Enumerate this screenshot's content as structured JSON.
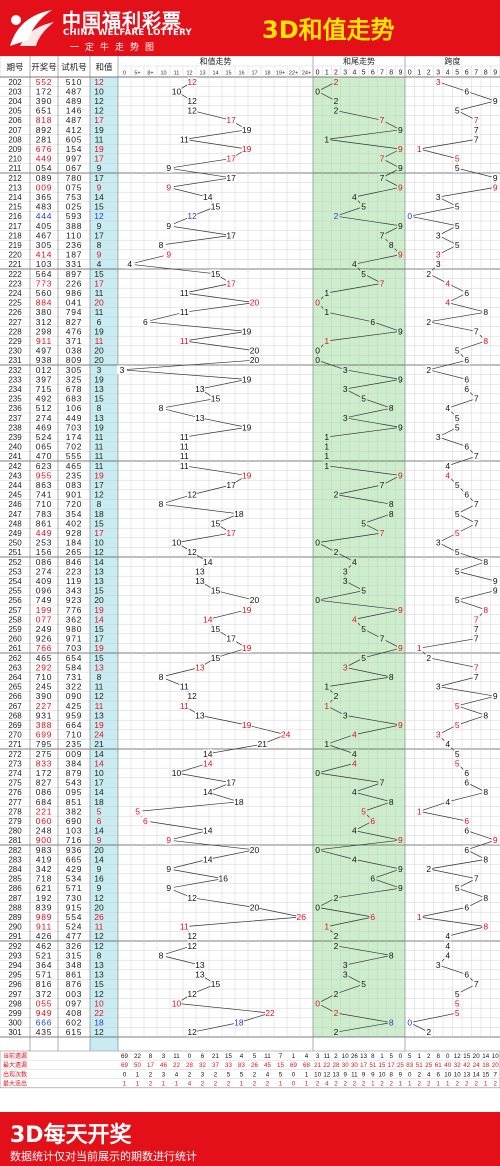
{
  "header": {
    "logo_cn": "中国福利彩票",
    "logo_en": "CHINA WELFARE LOTTERY",
    "slogan": "一定牛走势图",
    "title": "3D和值走势"
  },
  "footer": {
    "title": "3D每天开奖",
    "note": "数据统计仅对当前展示的期数进行统计"
  },
  "columns": {
    "issue": "期号",
    "prize": "开奖号",
    "trial": "试机号",
    "sum": "和值",
    "sum_trend": "和值走势",
    "tail_trend": "和尾走势",
    "span": "跨度",
    "sum_bins": [
      "0",
      "5+",
      "8+",
      "10",
      "11",
      "12",
      "13",
      "14",
      "15",
      "16",
      "17",
      "18",
      "19+",
      "22+",
      "24+"
    ],
    "digits": [
      "0",
      "1",
      "2",
      "3",
      "4",
      "5",
      "6",
      "7",
      "8",
      "9"
    ]
  },
  "stats_labels": [
    "当前遗漏",
    "最大遗漏",
    "出现次数",
    "最大连出"
  ],
  "stats": {
    "sum": [
      [
        "69",
        "22",
        "8",
        "3",
        "11",
        "0",
        "6",
        "21",
        "15",
        "4",
        "5",
        "11",
        "7",
        "1",
        "4"
      ],
      [
        "69",
        "50",
        "17",
        "46",
        "22",
        "28",
        "32",
        "37",
        "33",
        "83",
        "26",
        "45",
        "15",
        "69",
        "68"
      ],
      [
        "0",
        "1",
        "2",
        "3",
        "4",
        "2",
        "3",
        "2",
        "5",
        "5",
        "2",
        "4",
        "5",
        "0",
        "1"
      ],
      [
        "1",
        "1",
        "2",
        "1",
        "1",
        "4",
        "2",
        "2",
        "2",
        "1",
        "2",
        "2",
        "1",
        "0",
        "1"
      ]
    ],
    "tail": [
      [
        "3",
        "11",
        "2",
        "10",
        "26",
        "13",
        "8",
        "1",
        "5",
        "0"
      ],
      [
        "21",
        "22",
        "28",
        "30",
        "30",
        "17",
        "51",
        "15",
        "17",
        "25"
      ],
      [
        "10",
        "12",
        "13",
        "9",
        "11",
        "9",
        "9",
        "10",
        "8",
        "9"
      ],
      [
        "2",
        "4",
        "2",
        "2",
        "2",
        "2",
        "1",
        "2",
        "2",
        "1"
      ]
    ],
    "span": [
      [
        "5",
        "1",
        "2",
        "8",
        "0",
        "12",
        "15",
        "20",
        "14",
        "10"
      ],
      [
        "83",
        "51",
        "25",
        "61",
        "40",
        "32",
        "42",
        "24",
        "18",
        "20"
      ],
      [
        "0",
        "2",
        "4",
        "6",
        "10",
        "10",
        "13",
        "14",
        "15",
        "7"
      ],
      [
        "1",
        "2",
        "2",
        "1",
        "1",
        "2",
        "2",
        "2",
        "1",
        "2"
      ]
    ]
  },
  "rows": [
    {
      "issue": "202",
      "prize": "552",
      "trial": "510",
      "sum": 12,
      "tail": 2,
      "span": 3
    },
    {
      "issue": "203",
      "prize": "172",
      "trial": "487",
      "sum": 10,
      "tail": 0,
      "span": 6
    },
    {
      "issue": "204",
      "prize": "390",
      "trial": "489",
      "sum": 12,
      "tail": 2,
      "span": 9
    },
    {
      "issue": "205",
      "prize": "651",
      "trial": "146",
      "sum": 12,
      "tail": 2,
      "span": 5
    },
    {
      "issue": "206",
      "prize": "818",
      "trial": "487",
      "sum": 17,
      "tail": 7,
      "span": 7
    },
    {
      "issue": "207",
      "prize": "892",
      "trial": "412",
      "sum": 19,
      "tail": 9,
      "span": 7
    },
    {
      "issue": "208",
      "prize": "281",
      "trial": "605",
      "sum": 11,
      "tail": 1,
      "span": 7
    },
    {
      "issue": "209",
      "prize": "676",
      "trial": "154",
      "sum": 19,
      "tail": 9,
      "span": 1
    },
    {
      "issue": "210",
      "prize": "449",
      "trial": "997",
      "sum": 17,
      "tail": 7,
      "span": 5
    },
    {
      "issue": "211",
      "prize": "054",
      "trial": "067",
      "sum": 9,
      "tail": 9,
      "span": 5
    },
    {
      "issue": "212",
      "prize": "089",
      "trial": "780",
      "sum": 17,
      "tail": 7,
      "span": 9
    },
    {
      "issue": "213",
      "prize": "009",
      "trial": "075",
      "sum": 9,
      "tail": 9,
      "span": 9
    },
    {
      "issue": "214",
      "prize": "365",
      "trial": "753",
      "sum": 14,
      "tail": 4,
      "span": 3
    },
    {
      "issue": "215",
      "prize": "483",
      "trial": "025",
      "sum": 15,
      "tail": 5,
      "span": 5
    },
    {
      "issue": "216",
      "prize": "444",
      "trial": "593",
      "sum": 12,
      "tail": 2,
      "span": 0
    },
    {
      "issue": "217",
      "prize": "405",
      "trial": "388",
      "sum": 9,
      "tail": 9,
      "span": 5
    },
    {
      "issue": "218",
      "prize": "467",
      "trial": "110",
      "sum": 17,
      "tail": 7,
      "span": 3
    },
    {
      "issue": "219",
      "prize": "305",
      "trial": "236",
      "sum": 8,
      "tail": 8,
      "span": 5
    },
    {
      "issue": "220",
      "prize": "414",
      "trial": "187",
      "sum": 9,
      "tail": 9,
      "span": 3
    },
    {
      "issue": "221",
      "prize": "103",
      "trial": "331",
      "sum": 4,
      "tail": 4,
      "span": 3
    },
    {
      "issue": "222",
      "prize": "564",
      "trial": "897",
      "sum": 15,
      "tail": 5,
      "span": 2
    },
    {
      "issue": "223",
      "prize": "773",
      "trial": "226",
      "sum": 17,
      "tail": 7,
      "span": 4
    },
    {
      "issue": "224",
      "prize": "560",
      "trial": "986",
      "sum": 11,
      "tail": 1,
      "span": 6
    },
    {
      "issue": "225",
      "prize": "884",
      "trial": "041",
      "sum": 20,
      "tail": 0,
      "span": 4
    },
    {
      "issue": "226",
      "prize": "380",
      "trial": "794",
      "sum": 11,
      "tail": 1,
      "span": 8
    },
    {
      "issue": "227",
      "prize": "312",
      "trial": "827",
      "sum": 6,
      "tail": 6,
      "span": 2
    },
    {
      "issue": "228",
      "prize": "298",
      "trial": "476",
      "sum": 19,
      "tail": 9,
      "span": 7
    },
    {
      "issue": "229",
      "prize": "911",
      "trial": "371",
      "sum": 11,
      "tail": 1,
      "span": 8
    },
    {
      "issue": "230",
      "prize": "497",
      "trial": "038",
      "sum": 20,
      "tail": 0,
      "span": 5
    },
    {
      "issue": "231",
      "prize": "938",
      "trial": "809",
      "sum": 20,
      "tail": 0,
      "span": 6
    },
    {
      "issue": "232",
      "prize": "012",
      "trial": "305",
      "sum": 3,
      "tail": 3,
      "span": 2
    },
    {
      "issue": "233",
      "prize": "397",
      "trial": "325",
      "sum": 19,
      "tail": 9,
      "span": 6
    },
    {
      "issue": "234",
      "prize": "715",
      "trial": "678",
      "sum": 13,
      "tail": 3,
      "span": 6
    },
    {
      "issue": "235",
      "prize": "492",
      "trial": "683",
      "sum": 15,
      "tail": 5,
      "span": 7
    },
    {
      "issue": "236",
      "prize": "512",
      "trial": "106",
      "sum": 8,
      "tail": 8,
      "span": 4
    },
    {
      "issue": "237",
      "prize": "274",
      "trial": "449",
      "sum": 13,
      "tail": 3,
      "span": 5
    },
    {
      "issue": "238",
      "prize": "469",
      "trial": "703",
      "sum": 19,
      "tail": 9,
      "span": 5
    },
    {
      "issue": "239",
      "prize": "524",
      "trial": "174",
      "sum": 11,
      "tail": 1,
      "span": 3
    },
    {
      "issue": "240",
      "prize": "065",
      "trial": "702",
      "sum": 11,
      "tail": 1,
      "span": 6
    },
    {
      "issue": "241",
      "prize": "470",
      "trial": "555",
      "sum": 11,
      "tail": 1,
      "span": 7
    },
    {
      "issue": "242",
      "prize": "623",
      "trial": "465",
      "sum": 11,
      "tail": 1,
      "span": 4
    },
    {
      "issue": "243",
      "prize": "955",
      "trial": "235",
      "sum": 19,
      "tail": 9,
      "span": 4
    },
    {
      "issue": "244",
      "prize": "863",
      "trial": "083",
      "sum": 17,
      "tail": 7,
      "span": 5
    },
    {
      "issue": "245",
      "prize": "741",
      "trial": "901",
      "sum": 12,
      "tail": 2,
      "span": 6
    },
    {
      "issue": "246",
      "prize": "710",
      "trial": "720",
      "sum": 8,
      "tail": 8,
      "span": 7
    },
    {
      "issue": "247",
      "prize": "783",
      "trial": "354",
      "sum": 18,
      "tail": 8,
      "span": 5
    },
    {
      "issue": "248",
      "prize": "861",
      "trial": "402",
      "sum": 15,
      "tail": 5,
      "span": 7
    },
    {
      "issue": "249",
      "prize": "449",
      "trial": "928",
      "sum": 17,
      "tail": 7,
      "span": 5
    },
    {
      "issue": "250",
      "prize": "253",
      "trial": "184",
      "sum": 10,
      "tail": 0,
      "span": 3
    },
    {
      "issue": "251",
      "prize": "156",
      "trial": "265",
      "sum": 12,
      "tail": 2,
      "span": 5
    },
    {
      "issue": "252",
      "prize": "086",
      "trial": "846",
      "sum": 14,
      "tail": 4,
      "span": 8
    },
    {
      "issue": "253",
      "prize": "274",
      "trial": "223",
      "sum": 13,
      "tail": 3,
      "span": 5
    },
    {
      "issue": "254",
      "prize": "409",
      "trial": "119",
      "sum": 13,
      "tail": 3,
      "span": 9
    },
    {
      "issue": "255",
      "prize": "096",
      "trial": "343",
      "sum": 15,
      "tail": 5,
      "span": 9
    },
    {
      "issue": "256",
      "prize": "749",
      "trial": "923",
      "sum": 20,
      "tail": 0,
      "span": 5
    },
    {
      "issue": "257",
      "prize": "199",
      "trial": "776",
      "sum": 19,
      "tail": 9,
      "span": 8
    },
    {
      "issue": "258",
      "prize": "077",
      "trial": "362",
      "sum": 14,
      "tail": 4,
      "span": 7
    },
    {
      "issue": "259",
      "prize": "249",
      "trial": "980",
      "sum": 15,
      "tail": 5,
      "span": 7
    },
    {
      "issue": "260",
      "prize": "926",
      "trial": "971",
      "sum": 17,
      "tail": 7,
      "span": 7
    },
    {
      "issue": "261",
      "prize": "766",
      "trial": "703",
      "sum": 19,
      "tail": 9,
      "span": 1
    },
    {
      "issue": "262",
      "prize": "465",
      "trial": "654",
      "sum": 15,
      "tail": 5,
      "span": 2
    },
    {
      "issue": "263",
      "prize": "292",
      "trial": "584",
      "sum": 13,
      "tail": 3,
      "span": 7
    },
    {
      "issue": "264",
      "prize": "710",
      "trial": "731",
      "sum": 8,
      "tail": 8,
      "span": 7
    },
    {
      "issue": "265",
      "prize": "245",
      "trial": "322",
      "sum": 11,
      "tail": 1,
      "span": 3
    },
    {
      "issue": "266",
      "prize": "390",
      "trial": "090",
      "sum": 12,
      "tail": 2,
      "span": 9
    },
    {
      "issue": "267",
      "prize": "227",
      "trial": "425",
      "sum": 11,
      "tail": 1,
      "span": 5
    },
    {
      "issue": "268",
      "prize": "931",
      "trial": "959",
      "sum": 13,
      "tail": 3,
      "span": 8
    },
    {
      "issue": "269",
      "prize": "388",
      "trial": "664",
      "sum": 19,
      "tail": 9,
      "span": 5
    },
    {
      "issue": "270",
      "prize": "699",
      "trial": "710",
      "sum": 24,
      "tail": 4,
      "span": 3
    },
    {
      "issue": "271",
      "prize": "795",
      "trial": "235",
      "sum": 21,
      "tail": 1,
      "span": 4
    },
    {
      "issue": "272",
      "prize": "275",
      "trial": "009",
      "sum": 14,
      "tail": 4,
      "span": 5
    },
    {
      "issue": "273",
      "prize": "833",
      "trial": "384",
      "sum": 14,
      "tail": 4,
      "span": 5
    },
    {
      "issue": "274",
      "prize": "172",
      "trial": "879",
      "sum": 10,
      "tail": 0,
      "span": 6
    },
    {
      "issue": "275",
      "prize": "827",
      "trial": "543",
      "sum": 17,
      "tail": 7,
      "span": 6
    },
    {
      "issue": "276",
      "prize": "086",
      "trial": "095",
      "sum": 14,
      "tail": 4,
      "span": 8
    },
    {
      "issue": "277",
      "prize": "684",
      "trial": "851",
      "sum": 18,
      "tail": 8,
      "span": 4
    },
    {
      "issue": "278",
      "prize": "221",
      "trial": "382",
      "sum": 5,
      "tail": 5,
      "span": 1
    },
    {
      "issue": "279",
      "prize": "060",
      "trial": "690",
      "sum": 6,
      "tail": 6,
      "span": 6
    },
    {
      "issue": "280",
      "prize": "248",
      "trial": "103",
      "sum": 14,
      "tail": 4,
      "span": 6
    },
    {
      "issue": "281",
      "prize": "900",
      "trial": "716",
      "sum": 9,
      "tail": 9,
      "span": 9
    },
    {
      "issue": "282",
      "prize": "983",
      "trial": "936",
      "sum": 20,
      "tail": 0,
      "span": 6
    },
    {
      "issue": "283",
      "prize": "419",
      "trial": "665",
      "sum": 14,
      "tail": 4,
      "span": 8
    },
    {
      "issue": "284",
      "prize": "342",
      "trial": "429",
      "sum": 9,
      "tail": 9,
      "span": 2
    },
    {
      "issue": "285",
      "prize": "718",
      "trial": "534",
      "sum": 16,
      "tail": 6,
      "span": 7
    },
    {
      "issue": "286",
      "prize": "621",
      "trial": "571",
      "sum": 9,
      "tail": 9,
      "span": 5
    },
    {
      "issue": "287",
      "prize": "192",
      "trial": "730",
      "sum": 12,
      "tail": 2,
      "span": 8
    },
    {
      "issue": "288",
      "prize": "839",
      "trial": "915",
      "sum": 20,
      "tail": 0,
      "span": 6
    },
    {
      "issue": "289",
      "prize": "989",
      "trial": "554",
      "sum": 26,
      "tail": 6,
      "span": 1
    },
    {
      "issue": "290",
      "prize": "911",
      "trial": "524",
      "sum": 11,
      "tail": 1,
      "span": 8
    },
    {
      "issue": "291",
      "prize": "426",
      "trial": "477",
      "sum": 12,
      "tail": 2,
      "span": 4
    },
    {
      "issue": "292",
      "prize": "462",
      "trial": "326",
      "sum": 12,
      "tail": 2,
      "span": 4
    },
    {
      "issue": "293",
      "prize": "521",
      "trial": "315",
      "sum": 8,
      "tail": 8,
      "span": 4
    },
    {
      "issue": "294",
      "prize": "364",
      "trial": "348",
      "sum": 13,
      "tail": 3,
      "span": 3
    },
    {
      "issue": "295",
      "prize": "571",
      "trial": "861",
      "sum": 13,
      "tail": 3,
      "span": 6
    },
    {
      "issue": "296",
      "prize": "816",
      "trial": "876",
      "sum": 15,
      "tail": 5,
      "span": 7
    },
    {
      "issue": "297",
      "prize": "372",
      "trial": "003",
      "sum": 12,
      "tail": 2,
      "span": 5
    },
    {
      "issue": "298",
      "prize": "055",
      "trial": "097",
      "sum": 10,
      "tail": 0,
      "span": 5
    },
    {
      "issue": "299",
      "prize": "949",
      "trial": "408",
      "sum": 22,
      "tail": 2,
      "span": 5
    },
    {
      "issue": "300",
      "prize": "666",
      "trial": "602",
      "sum": 18,
      "tail": 8,
      "span": 0
    },
    {
      "issue": "301",
      "prize": "435",
      "trial": "615",
      "sum": 12,
      "tail": 2,
      "span": 2
    }
  ],
  "colors": {
    "header_bg": "#e3101a",
    "title_yellow": "#ffe600",
    "sum_col_bg": "#c9ecf2",
    "tail_bg": "#cdeecd",
    "grid_line": "#c8c8c8",
    "red": "#e3101a",
    "blue": "#1a3fd6",
    "line": "#333333"
  }
}
